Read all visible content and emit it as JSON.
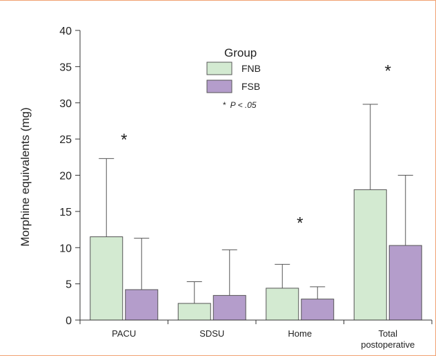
{
  "chart_data": {
    "type": "bar",
    "categories": [
      "PACU",
      "SDSU",
      "Home",
      "Total\npostoperative"
    ],
    "series": [
      {
        "name": "FNB",
        "values": [
          11.5,
          2.3,
          4.4,
          18.0
        ],
        "error": [
          10.8,
          3.0,
          3.3,
          11.8
        ]
      },
      {
        "name": "FSB",
        "values": [
          4.2,
          3.4,
          2.9,
          10.3
        ],
        "error": [
          7.1,
          6.3,
          1.7,
          9.7
        ]
      }
    ],
    "ylabel": "Morphine equivalents (mg)",
    "xlabel": "",
    "ylim": [
      0,
      40
    ],
    "yticks": [
      0,
      5,
      10,
      15,
      20,
      25,
      30,
      35,
      40
    ],
    "legend": {
      "title": "Group",
      "position": "top-center"
    },
    "colors": {
      "FNB": "#d3ead1",
      "FSB": "#b49dcb"
    },
    "significance": [
      {
        "category": "PACU",
        "y": 25.5,
        "label": "*"
      },
      {
        "category": "Home",
        "y": 14,
        "label": "*"
      },
      {
        "category": "Total\npostoperative",
        "y": 35,
        "label": "*"
      }
    ],
    "annotation": {
      "star": "*",
      "text": "P < .05"
    }
  }
}
